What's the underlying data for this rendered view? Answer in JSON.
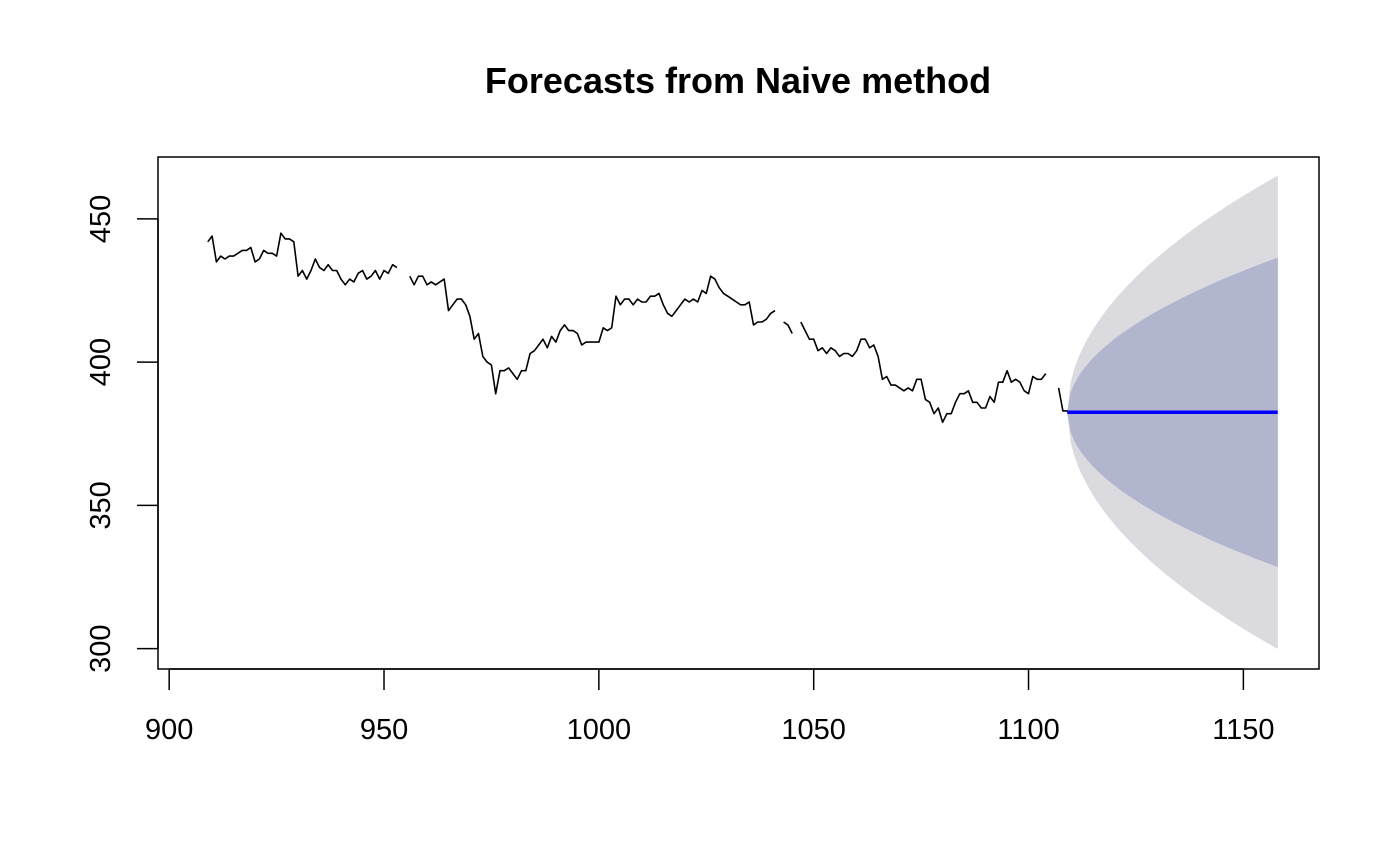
{
  "chart_data": {
    "type": "line",
    "title": "Forecasts from Naive method",
    "xlabel": "",
    "ylabel": "",
    "xlim": [
      897.4,
      1167.6
    ],
    "ylim": [
      292.9,
      471.6
    ],
    "x_ticks": [
      900,
      950,
      1000,
      1050,
      1100,
      1150
    ],
    "y_ticks": [
      300,
      350,
      400,
      450
    ],
    "grid": false,
    "legend": "none",
    "colors": {
      "history": "#000000",
      "forecast": "#0000ff",
      "band_80": "#b1b5ce",
      "band_95": "#dbdbdf"
    },
    "history": {
      "name": "",
      "x_start": 909,
      "values": [
        442,
        444,
        435,
        437,
        436,
        437,
        437,
        438,
        439,
        439,
        440,
        435,
        436,
        439,
        438,
        438,
        437,
        445,
        443,
        443,
        442,
        430,
        432,
        429,
        432,
        436,
        433,
        432,
        434,
        432,
        432,
        429,
        427,
        429,
        428,
        431,
        432,
        429,
        430,
        432,
        429,
        432,
        431,
        434,
        433,
        null,
        null,
        430,
        427,
        430,
        430,
        427,
        428,
        427,
        428,
        429,
        418,
        420,
        422,
        422,
        420,
        416,
        408,
        410,
        402,
        400,
        399,
        389,
        397,
        397,
        398,
        396,
        394,
        397,
        397,
        403,
        404,
        406,
        408,
        405,
        409,
        407,
        411,
        413,
        411,
        411,
        410,
        406,
        407,
        407,
        407,
        407,
        412,
        411,
        412,
        423,
        420,
        422,
        422,
        420,
        422,
        421,
        421,
        423,
        423,
        424,
        420,
        417,
        416,
        418,
        420,
        422,
        421,
        422,
        421,
        425,
        424,
        430,
        429,
        426,
        424,
        423,
        422,
        421,
        420,
        420,
        421,
        413,
        414,
        414,
        415,
        417,
        418,
        null,
        414,
        413,
        410,
        null,
        414,
        411,
        408,
        408,
        404,
        405,
        403,
        405,
        404,
        402,
        403,
        403,
        402,
        404,
        408,
        408,
        405,
        406,
        402,
        394,
        395,
        392,
        392,
        391,
        390,
        391,
        390,
        394,
        394,
        387,
        386,
        382,
        384,
        379,
        382,
        382,
        386,
        389,
        389,
        390,
        386,
        386,
        384,
        384,
        388,
        386,
        393,
        393,
        397,
        393,
        394,
        393,
        390,
        389,
        395,
        394,
        394,
        396,
        null,
        null,
        391,
        383,
        383,
        382
      ]
    },
    "forecast": {
      "name": "",
      "x_start": 1109,
      "x_end": 1158,
      "point": 382.5,
      "upper_80_end": 436.5,
      "lower_80_end": 328.5,
      "upper_95_end": 465.1,
      "lower_95_end": 299.9
    }
  }
}
